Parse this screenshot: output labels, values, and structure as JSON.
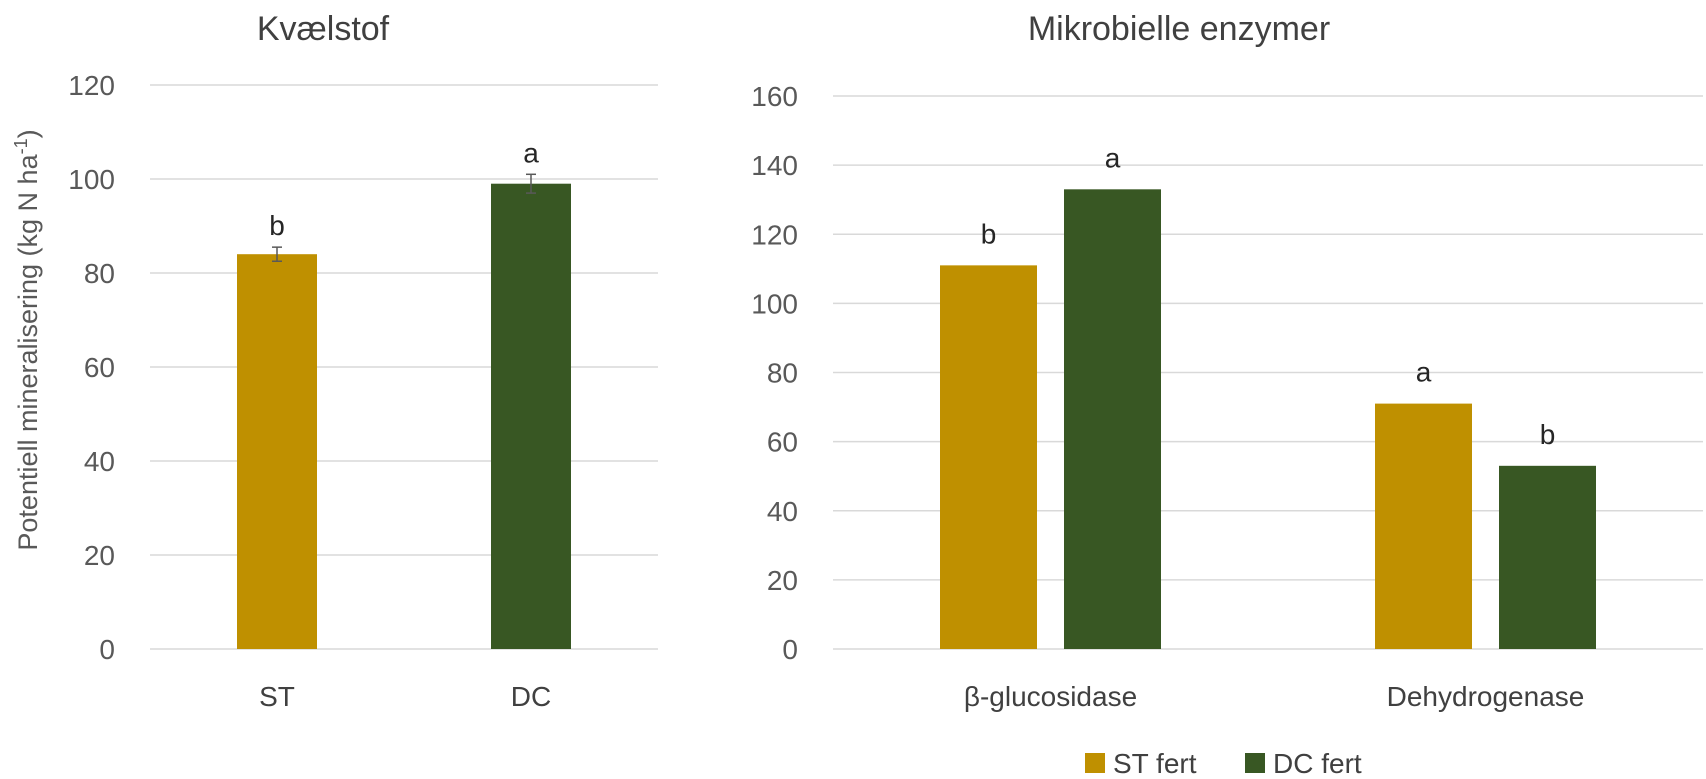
{
  "chart_data": [
    {
      "type": "bar",
      "title": "Kvælstof",
      "ylabel": "Potentiell mineralisering (kg N ha-1)",
      "ylabel_main": "Potentiell mineralisering (kg N ha",
      "ylabel_sup": "-1",
      "ylabel_close": ")",
      "ylim": [
        0,
        120
      ],
      "yticks": [
        0,
        20,
        40,
        60,
        80,
        100,
        120
      ],
      "grid": true,
      "categories": [
        "ST",
        "DC"
      ],
      "values": [
        84,
        99
      ],
      "errors": [
        1.5,
        2
      ],
      "colors": [
        "#BF9000",
        "#385723"
      ],
      "significance": [
        "b",
        "a"
      ]
    },
    {
      "type": "bar",
      "title": "Mikrobielle enzymer",
      "ylim": [
        0,
        160
      ],
      "yticks": [
        0,
        20,
        40,
        60,
        80,
        100,
        120,
        140,
        160
      ],
      "grid": true,
      "categories": [
        "β-glucosidase",
        "Dehydrogenase"
      ],
      "series": [
        {
          "name": "ST fert",
          "color": "#BF9000",
          "values": [
            111,
            71
          ],
          "significance": [
            "b",
            "a"
          ]
        },
        {
          "name": "DC fert",
          "color": "#385723",
          "values": [
            133,
            53
          ],
          "significance": [
            "a",
            "b"
          ]
        }
      ],
      "legend_position": "bottom"
    }
  ]
}
